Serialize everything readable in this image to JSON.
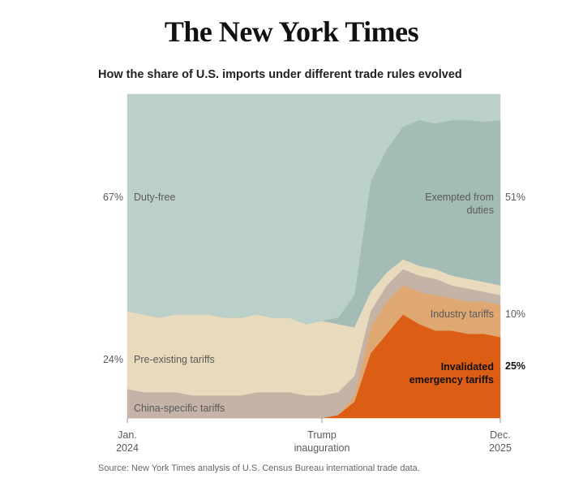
{
  "header": {
    "logo": "The New York Times"
  },
  "chart_data": {
    "type": "stacked-area",
    "title": "How the share of U.S. imports under different trade rules evolved",
    "source": "Source: New York Times analysis of U.S. Census Bureau international trade data.",
    "categories": [
      "Jan. 2024",
      null,
      null,
      null,
      null,
      null,
      null,
      null,
      null,
      null,
      null,
      null,
      "Trump inauguration",
      null,
      null,
      null,
      null,
      null,
      null,
      null,
      null,
      null,
      null,
      "Dec. 2025"
    ],
    "ylim": [
      0,
      100
    ],
    "series": [
      {
        "name": "Invalidated emergency tariffs",
        "color": "#dc5d14",
        "values": [
          0,
          0,
          0,
          0,
          0,
          0,
          0,
          0,
          0,
          0,
          0,
          0,
          0,
          1,
          5,
          20,
          26,
          32,
          29,
          27,
          27,
          26,
          26,
          25
        ],
        "value_labels": [
          null,
          null,
          null,
          null,
          null,
          null,
          null,
          null,
          null,
          null,
          null,
          null,
          null,
          null,
          null,
          null,
          null,
          null,
          null,
          null,
          null,
          null,
          null,
          "25%"
        ]
      },
      {
        "name": "Industry tariffs",
        "color": "#dfa873",
        "values": [
          0,
          0,
          0,
          0,
          0,
          0,
          0,
          0,
          0,
          0,
          0,
          0,
          0,
          0,
          2,
          8,
          10,
          9,
          10,
          11,
          10,
          10,
          10,
          10
        ],
        "value_labels": [
          null,
          null,
          null,
          null,
          null,
          null,
          null,
          null,
          null,
          null,
          null,
          null,
          null,
          null,
          null,
          null,
          null,
          null,
          null,
          null,
          null,
          null,
          null,
          "10%"
        ]
      },
      {
        "name": "China-specific tariffs",
        "color": "#c4b3a6",
        "values": [
          9,
          8,
          8,
          8,
          7,
          7,
          7,
          7,
          8,
          8,
          8,
          7,
          7,
          7,
          6,
          5,
          5,
          5,
          5,
          5,
          4,
          4,
          3,
          3
        ]
      },
      {
        "name": "Pre-existing tariffs",
        "color": "#e8dbbd",
        "values": [
          24,
          24,
          23,
          24,
          25,
          25,
          24,
          24,
          24,
          23,
          23,
          22,
          23,
          21,
          15,
          6,
          4,
          3,
          3,
          3,
          3,
          3,
          3,
          3
        ],
        "value_labels": [
          "24%",
          null,
          null,
          null,
          null,
          null,
          null,
          null,
          null,
          null,
          null,
          null,
          null,
          null,
          null,
          null,
          null,
          null,
          null,
          null,
          null,
          null,
          null,
          null
        ]
      },
      {
        "name": "Exempted from duties",
        "color": "#a3bdb6",
        "values": [
          0,
          0,
          0,
          0,
          0,
          0,
          0,
          0,
          0,
          0,
          0,
          0,
          0,
          2,
          10,
          34,
          38,
          41,
          45,
          45,
          48,
          49,
          49.5,
          51
        ],
        "value_labels": [
          null,
          null,
          null,
          null,
          null,
          null,
          null,
          null,
          null,
          null,
          null,
          null,
          null,
          null,
          null,
          null,
          null,
          null,
          null,
          null,
          null,
          null,
          null,
          "51%"
        ]
      },
      {
        "name": "Duty-free",
        "color": "#bcd0ca",
        "values": [
          67,
          68,
          69,
          68,
          68,
          68,
          69,
          69,
          68,
          69,
          69,
          71,
          70,
          69,
          62,
          27,
          17,
          10,
          8,
          9,
          8,
          8,
          8.5,
          8
        ],
        "value_labels": [
          "67%",
          null,
          null,
          null,
          null,
          null,
          null,
          null,
          null,
          null,
          null,
          null,
          null,
          null,
          null,
          null,
          null,
          null,
          null,
          null,
          null,
          null,
          null,
          null
        ]
      }
    ]
  }
}
